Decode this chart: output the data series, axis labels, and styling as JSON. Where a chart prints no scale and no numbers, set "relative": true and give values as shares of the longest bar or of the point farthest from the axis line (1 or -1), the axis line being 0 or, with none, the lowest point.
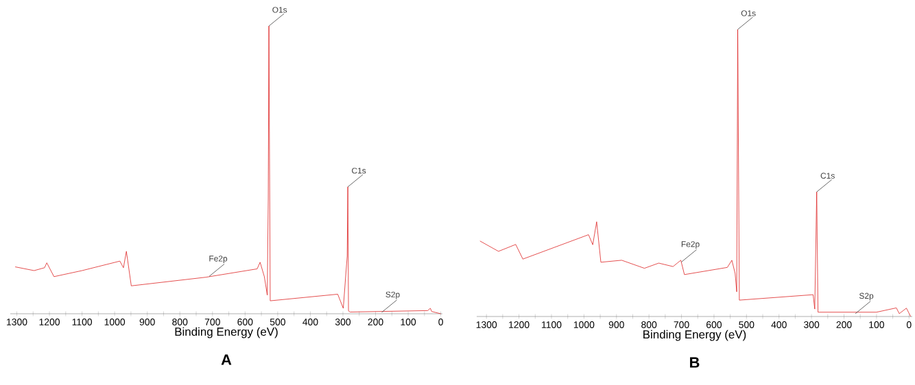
{
  "chart_data": [
    {
      "type": "line",
      "title": "**A**",
      "xlabel": "Binding Energy (eV)",
      "relative": true,
      "color": "#dd2222",
      "xlim": [
        1320,
        -5
      ],
      "xticks": [
        1300,
        {
          "value": 1250,
          "label": null
        },
        1200,
        {
          "value": 1150,
          "label": null
        },
        1100,
        {
          "value": 1050,
          "label": null
        },
        1000,
        {
          "value": 950,
          "label": null
        },
        900,
        {
          "value": 850,
          "label": null
        },
        800,
        {
          "value": 750,
          "label": null
        },
        700,
        {
          "value": 650,
          "label": null
        },
        600,
        {
          "value": 550,
          "label": null
        },
        500,
        {
          "value": 450,
          "label": null
        },
        400,
        {
          "value": 350,
          "label": null
        },
        300,
        {
          "value": 250,
          "label": null
        },
        200,
        {
          "value": 150,
          "label": null
        },
        100,
        {
          "value": 50,
          "label": null
        },
        0
      ],
      "x": [
        1305,
        1247,
        1215,
        1208,
        1186,
        1100,
        984,
        973,
        964,
        949,
        720,
        563,
        554,
        541,
        532,
        529,
        527,
        523,
        316,
        299,
        287,
        285,
        283,
        278,
        40,
        32,
        28,
        0
      ],
      "values": [
        0.163,
        0.15,
        0.16,
        0.177,
        0.129,
        0.15,
        0.183,
        0.16,
        0.217,
        0.097,
        0.127,
        0.156,
        0.179,
        0.129,
        0.065,
        0.4,
        1.0,
        0.045,
        0.068,
        0.019,
        0.2,
        0.441,
        0.01,
        0.006,
        0.011,
        0.019,
        0.008,
        0.0
      ],
      "annotations": [
        {
          "text": "O1s",
          "x": 527,
          "y": 1.0
        },
        {
          "text": "C1s",
          "x": 285,
          "y": 0.441
        },
        {
          "text": "Fe2p",
          "x": 710,
          "y": 0.13
        },
        {
          "text": "S2p",
          "x": 181,
          "y": 0.005
        }
      ]
    },
    {
      "type": "line",
      "title": "**B**",
      "xlabel": "Binding Energy (eV)",
      "relative": true,
      "color": "#dd2222",
      "xlim": [
        1330,
        -10
      ],
      "xticks": [
        1300,
        {
          "value": 1250,
          "label": null
        },
        1200,
        {
          "value": 1150,
          "label": null
        },
        1100,
        {
          "value": 1050,
          "label": null
        },
        1000,
        {
          "value": 950,
          "label": null
        },
        900,
        {
          "value": 850,
          "label": null
        },
        800,
        {
          "value": 750,
          "label": null
        },
        700,
        {
          "value": 650,
          "label": null
        },
        600,
        {
          "value": 550,
          "label": null
        },
        500,
        {
          "value": 450,
          "label": null
        },
        400,
        {
          "value": 350,
          "label": null
        },
        300,
        {
          "value": 250,
          "label": null
        },
        200,
        {
          "value": 150,
          "label": null
        },
        100,
        {
          "value": 50,
          "label": null
        },
        0
      ],
      "x": [
        1320,
        1263,
        1210,
        1188,
        986,
        973,
        961,
        948,
        884,
        814,
        770,
        726,
        702,
        691,
        559,
        545,
        535,
        530,
        527,
        522,
        295,
        290,
        284,
        280,
        100,
        39,
        30,
        8,
        -5
      ],
      "values": [
        0.263,
        0.227,
        0.251,
        0.2,
        0.285,
        0.25,
        0.33,
        0.189,
        0.196,
        0.168,
        0.186,
        0.174,
        0.196,
        0.146,
        0.171,
        0.196,
        0.15,
        0.086,
        1.0,
        0.057,
        0.076,
        0.026,
        0.434,
        0.015,
        0.015,
        0.03,
        0.01,
        0.029,
        0.0
      ],
      "annotations": [
        {
          "text": "O1s",
          "x": 527,
          "y": 1.0
        },
        {
          "text": "C1s",
          "x": 284,
          "y": 0.434
        },
        {
          "text": "Fe2p",
          "x": 700,
          "y": 0.19
        },
        {
          "text": "S2p",
          "x": 165,
          "y": 0.01
        }
      ]
    }
  ]
}
